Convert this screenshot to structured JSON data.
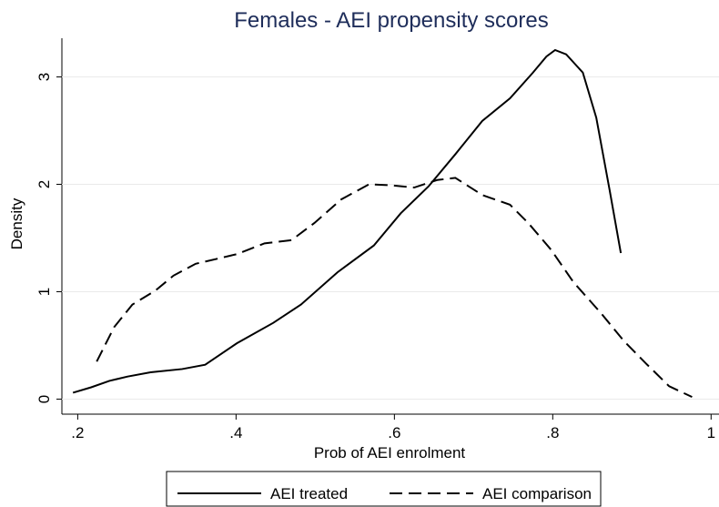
{
  "chart_data": {
    "type": "line",
    "title": "Females - AEI propensity scores",
    "xlabel": "Prob of AEI enrolment",
    "ylabel": "Density",
    "xlim": [
      0.18,
      1.01
    ],
    "ylim": [
      -0.14,
      3.36
    ],
    "xticks": [
      {
        "value": 0.2,
        "label": ".2"
      },
      {
        "value": 0.4,
        "label": ".4"
      },
      {
        "value": 0.6,
        "label": ".6"
      },
      {
        "value": 0.8,
        "label": ".8"
      },
      1
    ],
    "yticks": [
      0,
      1,
      2,
      3
    ],
    "grid": true,
    "legend": "bottom",
    "series": [
      {
        "name": "AEI treated",
        "color": "#000000",
        "dash": "solid",
        "x": [
          0.194,
          0.217,
          0.24,
          0.263,
          0.292,
          0.332,
          0.361,
          0.401,
          0.447,
          0.482,
          0.528,
          0.574,
          0.608,
          0.643,
          0.677,
          0.711,
          0.746,
          0.775,
          0.792,
          0.803,
          0.817,
          0.838,
          0.855,
          0.872,
          0.886
        ],
        "values": [
          0.06,
          0.11,
          0.17,
          0.21,
          0.25,
          0.28,
          0.32,
          0.52,
          0.71,
          0.88,
          1.18,
          1.43,
          1.73,
          1.98,
          2.28,
          2.59,
          2.8,
          3.04,
          3.19,
          3.25,
          3.21,
          3.04,
          2.62,
          1.94,
          1.36
        ]
      },
      {
        "name": "AEI comparison",
        "color": "#000000",
        "dash": "dashed",
        "x": [
          0.224,
          0.246,
          0.269,
          0.298,
          0.321,
          0.349,
          0.378,
          0.401,
          0.436,
          0.47,
          0.499,
          0.533,
          0.568,
          0.597,
          0.625,
          0.654,
          0.677,
          0.711,
          0.746,
          0.769,
          0.798,
          0.826,
          0.861,
          0.89,
          0.918,
          0.947,
          0.976
        ],
        "values": [
          0.35,
          0.67,
          0.88,
          1.01,
          1.15,
          1.26,
          1.31,
          1.35,
          1.45,
          1.48,
          1.64,
          1.86,
          2.0,
          1.99,
          1.97,
          2.04,
          2.06,
          1.9,
          1.81,
          1.64,
          1.39,
          1.09,
          0.8,
          0.54,
          0.33,
          0.12,
          0.02
        ]
      }
    ]
  }
}
